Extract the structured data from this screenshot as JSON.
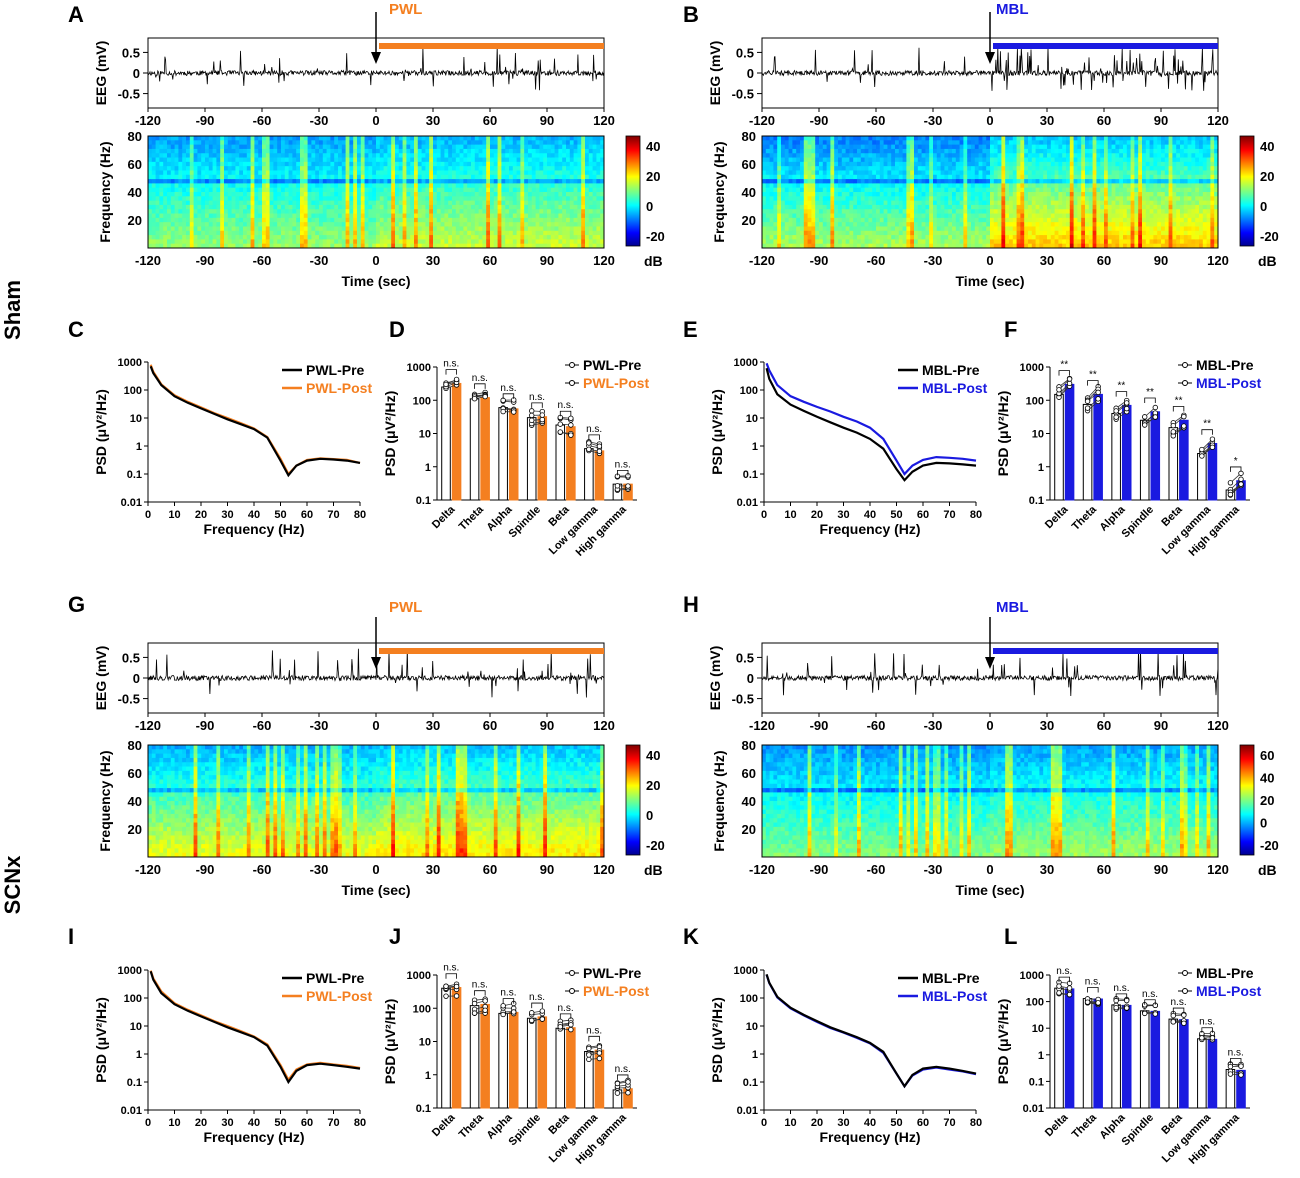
{
  "groups": [
    "Sham",
    "SCNx"
  ],
  "colors": {
    "PWL": "#f47f20",
    "MBL": "#1a1ae0",
    "pre": "#000000"
  },
  "conditions": {
    "PWL": "PWL",
    "MBL": "MBL"
  },
  "eeg_axis": {
    "ylabel": "EEG (mV)",
    "yticks": [
      "0.5",
      "0",
      "-0.5"
    ],
    "xticks": [
      "-120",
      "-90",
      "-60",
      "-30",
      "0",
      "30",
      "60",
      "90",
      "120"
    ]
  },
  "spec_axis": {
    "ylabel": "Frequency (Hz)",
    "yticks": [
      "80",
      "60",
      "40",
      "20"
    ],
    "xlabel": "Time (sec)",
    "xticks": [
      "-120",
      "-90",
      "-60",
      "-30",
      "0",
      "30",
      "60",
      "90",
      "120"
    ],
    "unit": "dB"
  },
  "colorbars": [
    {
      "ticks": [
        "40",
        "20",
        "0",
        "-20"
      ]
    },
    {
      "ticks": [
        "40",
        "20",
        "0",
        "-20"
      ]
    },
    {
      "ticks": [
        "40",
        "20",
        "0",
        "-20"
      ]
    },
    {
      "ticks": [
        "60",
        "40",
        "20",
        "0",
        "-20"
      ]
    }
  ],
  "psd_axis": {
    "ylabel": "PSD (μV²/Hz)",
    "yticks": [
      "1000",
      "100",
      "10",
      "1",
      "0.1",
      "0.01"
    ],
    "xlabel": "Frequency (Hz)",
    "xticks": [
      "0",
      "10",
      "20",
      "30",
      "40",
      "50",
      "60",
      "70",
      "80"
    ]
  },
  "bar_axis": {
    "yticks": [
      "1000",
      "100",
      "10",
      "1",
      "0.1"
    ],
    "yticks_long": [
      "1000",
      "100",
      "10",
      "1",
      "0.1",
      "0.01"
    ]
  },
  "panels": {
    "A": {
      "letter": "A",
      "cond": "PWL"
    },
    "B": {
      "letter": "B",
      "cond": "MBL"
    },
    "C": {
      "letter": "C",
      "legend": [
        "PWL-Pre",
        "PWL-Post"
      ]
    },
    "D": {
      "letter": "D",
      "legend": [
        "PWL-Pre",
        "PWL-Post"
      ]
    },
    "E": {
      "letter": "E",
      "legend": [
        "MBL-Pre",
        "MBL-Post"
      ]
    },
    "F": {
      "letter": "F",
      "legend": [
        "MBL-Pre",
        "MBL-Post"
      ]
    },
    "G": {
      "letter": "G",
      "cond": "PWL"
    },
    "H": {
      "letter": "H",
      "cond": "MBL"
    },
    "I": {
      "letter": "I",
      "legend": [
        "PWL-Pre",
        "PWL-Post"
      ]
    },
    "J": {
      "letter": "J",
      "legend": [
        "PWL-Pre",
        "PWL-Post"
      ]
    },
    "K": {
      "letter": "K",
      "legend": [
        "MBL-Pre",
        "MBL-Post"
      ]
    },
    "L": {
      "letter": "L",
      "legend": [
        "MBL-Pre",
        "MBL-Post"
      ]
    }
  },
  "chart_data": [
    {
      "id": "C",
      "type": "line",
      "xlabel": "Frequency (Hz)",
      "ylabel": "PSD (μV²/Hz)",
      "yscale": "log",
      "ylim": [
        0.01,
        1000
      ],
      "xlim": [
        0,
        80
      ],
      "x": [
        1,
        2,
        5,
        10,
        15,
        20,
        25,
        30,
        35,
        40,
        45,
        50,
        53,
        56,
        60,
        65,
        70,
        75,
        80
      ],
      "series": [
        {
          "name": "PWL-Pre",
          "values": [
            700,
            400,
            150,
            60,
            35,
            22,
            14,
            9,
            6,
            4,
            2,
            0.3,
            0.09,
            0.2,
            0.3,
            0.35,
            0.33,
            0.3,
            0.25
          ]
        },
        {
          "name": "PWL-Post",
          "values": [
            800,
            450,
            160,
            65,
            38,
            24,
            15,
            10,
            6.5,
            4.2,
            2.1,
            0.35,
            0.1,
            0.2,
            0.32,
            0.36,
            0.34,
            0.32,
            0.25
          ]
        }
      ]
    },
    {
      "id": "D",
      "type": "bar",
      "yscale": "log",
      "ylim": [
        0.1,
        1000
      ],
      "categories": [
        "Delta",
        "Theta",
        "Alpha",
        "Spindle",
        "Beta",
        "Low gamma",
        "High gamma"
      ],
      "series": [
        {
          "name": "PWL-Pre",
          "values": [
            250,
            110,
            60,
            30,
            18,
            3.5,
            0.3
          ]
        },
        {
          "name": "PWL-Post",
          "values": [
            320,
            120,
            55,
            32,
            16,
            3.0,
            0.3
          ]
        }
      ],
      "significance": [
        "n.s.",
        "n.s.",
        "n.s.",
        "n.s.",
        "n.s.",
        "n.s.",
        "n.s."
      ]
    },
    {
      "id": "E",
      "type": "line",
      "xlabel": "Frequency (Hz)",
      "ylabel": "PSD (μV²/Hz)",
      "yscale": "log",
      "ylim": [
        0.01,
        1000
      ],
      "xlim": [
        0,
        80
      ],
      "x": [
        1,
        2,
        5,
        10,
        15,
        20,
        25,
        30,
        35,
        40,
        45,
        50,
        53,
        56,
        60,
        65,
        70,
        75,
        80
      ],
      "series": [
        {
          "name": "MBL-Pre",
          "values": [
            600,
            250,
            70,
            30,
            18,
            11,
            7,
            4.5,
            3,
            1.8,
            0.8,
            0.15,
            0.06,
            0.12,
            0.2,
            0.25,
            0.24,
            0.22,
            0.2
          ]
        },
        {
          "name": "MBL-Post",
          "values": [
            900,
            500,
            150,
            60,
            38,
            25,
            17,
            11,
            7.5,
            4.5,
            1.8,
            0.3,
            0.1,
            0.2,
            0.32,
            0.4,
            0.38,
            0.35,
            0.3
          ]
        }
      ]
    },
    {
      "id": "F",
      "type": "bar",
      "yscale": "log",
      "ylim": [
        0.1,
        1000
      ],
      "categories": [
        "Delta",
        "Theta",
        "Alpha",
        "Spindle",
        "Beta",
        "Low gamma",
        "High gamma"
      ],
      "series": [
        {
          "name": "MBL-Pre",
          "values": [
            150,
            75,
            40,
            25,
            15,
            2.5,
            0.2
          ]
        },
        {
          "name": "MBL-Post",
          "values": [
            300,
            150,
            70,
            45,
            25,
            5,
            0.38
          ]
        }
      ],
      "significance": [
        "**",
        "**",
        "**",
        "**",
        "**",
        "**",
        "*"
      ]
    },
    {
      "id": "I",
      "type": "line",
      "xlabel": "Frequency (Hz)",
      "ylabel": "PSD (μV²/Hz)",
      "yscale": "log",
      "ylim": [
        0.01,
        1000
      ],
      "xlim": [
        0,
        80
      ],
      "x": [
        1,
        2,
        5,
        10,
        15,
        20,
        25,
        30,
        35,
        40,
        45,
        50,
        53,
        56,
        60,
        65,
        70,
        75,
        80
      ],
      "series": [
        {
          "name": "PWL-Pre",
          "values": [
            900,
            450,
            150,
            60,
            35,
            22,
            14,
            9,
            6,
            4,
            2,
            0.35,
            0.1,
            0.25,
            0.4,
            0.45,
            0.4,
            0.35,
            0.3
          ]
        },
        {
          "name": "PWL-Post",
          "values": [
            950,
            500,
            170,
            65,
            38,
            24,
            15,
            10,
            6.5,
            4.2,
            2.2,
            0.4,
            0.12,
            0.28,
            0.42,
            0.48,
            0.42,
            0.38,
            0.32
          ]
        }
      ]
    },
    {
      "id": "J",
      "type": "bar",
      "yscale": "log",
      "ylim": [
        0.1,
        1000
      ],
      "categories": [
        "Delta",
        "Theta",
        "Alpha",
        "Spindle",
        "Beta",
        "Low gamma",
        "High gamma"
      ],
      "series": [
        {
          "name": "PWL-Pre",
          "values": [
            400,
            120,
            70,
            50,
            25,
            5,
            0.35
          ]
        },
        {
          "name": "PWL-Post",
          "values": [
            420,
            130,
            75,
            55,
            26,
            5.5,
            0.38
          ]
        }
      ],
      "significance": [
        "n.s.",
        "n.s.",
        "n.s.",
        "n.s.",
        "n.s.",
        "n.s.",
        "n.s."
      ]
    },
    {
      "id": "K",
      "type": "line",
      "xlabel": "Frequency (Hz)",
      "ylabel": "PSD (μV²/Hz)",
      "yscale": "log",
      "ylim": [
        0.01,
        1000
      ],
      "xlim": [
        0,
        80
      ],
      "x": [
        1,
        2,
        5,
        10,
        15,
        20,
        25,
        30,
        35,
        40,
        45,
        50,
        53,
        56,
        60,
        65,
        70,
        75,
        80
      ],
      "series": [
        {
          "name": "MBL-Pre",
          "values": [
            700,
            350,
            110,
            45,
            25,
            15,
            9,
            6,
            4,
            2.5,
            1.2,
            0.2,
            0.07,
            0.18,
            0.3,
            0.35,
            0.3,
            0.25,
            0.2
          ]
        },
        {
          "name": "MBL-Post",
          "values": [
            680,
            340,
            105,
            43,
            24,
            14,
            8.5,
            5.8,
            3.8,
            2.4,
            1.1,
            0.2,
            0.07,
            0.17,
            0.28,
            0.33,
            0.28,
            0.24,
            0.19
          ]
        }
      ]
    },
    {
      "id": "L",
      "type": "bar",
      "yscale": "log",
      "ylim": [
        0.01,
        1000
      ],
      "categories": [
        "Delta",
        "Theta",
        "Alpha",
        "Spindle",
        "Beta",
        "Low gamma",
        "High gamma"
      ],
      "series": [
        {
          "name": "MBL-Pre",
          "values": [
            320,
            130,
            75,
            45,
            22,
            4,
            0.28
          ]
        },
        {
          "name": "MBL-Post",
          "values": [
            300,
            125,
            72,
            43,
            21,
            3.8,
            0.26
          ]
        }
      ],
      "significance": [
        "n.s.",
        "n.s.",
        "n.s.",
        "n.s.",
        "n.s.",
        "n.s.",
        "n.s."
      ]
    }
  ]
}
